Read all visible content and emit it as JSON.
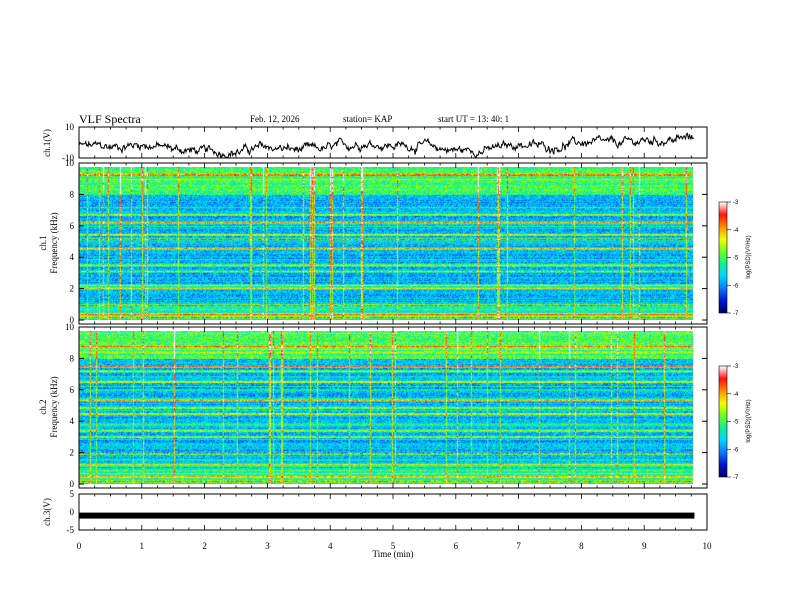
{
  "header": {
    "title": "VLF Spectra",
    "date": "Feb. 12, 2026",
    "station": "station= KAP",
    "start": "start  UT  =   13: 40: 1"
  },
  "colors": {
    "trace": "#000000",
    "colormap": [
      "#00006a",
      "#0018d0",
      "#0a7cff",
      "#00d8ff",
      "#10f090",
      "#70ff20",
      "#f0ff00",
      "#ff9000",
      "#ff1010",
      "#ffffff"
    ]
  },
  "chart_data": [
    {
      "type": "line",
      "panel": "ch1_voltage",
      "ylabel": "ch.1(V)",
      "ylim": [
        -10,
        10
      ],
      "yticks": [
        10,
        -10
      ],
      "x_minutes": [
        0,
        0.5,
        1.0,
        1.5,
        2.0,
        2.5,
        3.0,
        3.5,
        4.0,
        4.5,
        5.0,
        5.5,
        6.0,
        6.5,
        7.0,
        7.5,
        8.0,
        8.5,
        9.0,
        9.5,
        9.8
      ],
      "values": [
        -2,
        -3,
        -1,
        -4,
        -6,
        -6,
        -3,
        -5,
        -4,
        0,
        -2,
        -2,
        -5,
        -5,
        -1,
        -3,
        0,
        -1,
        1,
        2,
        3
      ]
    },
    {
      "type": "heatmap",
      "panel": "ch1_spectrogram",
      "ylabel": "ch.1\nFrequency (kHz)",
      "ylim": [
        0,
        10
      ],
      "yticks": [
        "0",
        "2",
        "4",
        "6",
        "8",
        "10"
      ],
      "colorbar": {
        "label": "log(PSD)(V²/Hz)",
        "range": [
          -7,
          -3
        ],
        "ticks": [
          "-3",
          "-4",
          "-5",
          "-6",
          "-7"
        ]
      },
      "strong_bands_khz": [
        0.2,
        0.4,
        1.0,
        2.1,
        2.3,
        3.2,
        3.6,
        4.7,
        5.3,
        5.6,
        6.4,
        6.9,
        9.5
      ]
    },
    {
      "type": "heatmap",
      "panel": "ch2_spectrogram",
      "ylabel": "ch.2\nFrequency (kHz)",
      "ylim": [
        0,
        10
      ],
      "yticks": [
        "0",
        "2",
        "4",
        "6",
        "8",
        "10"
      ],
      "colorbar": {
        "label": "log(PSD)(V²/Hz)",
        "range": [
          -7,
          -3
        ],
        "ticks": [
          "-3",
          "-4",
          "-5",
          "-6",
          "-7"
        ]
      },
      "strong_bands_khz": [
        0.2,
        0.5,
        1.3,
        2.0,
        3.1,
        3.5,
        4.6,
        5.0,
        5.5,
        6.7,
        7.4,
        7.7,
        9.0
      ]
    },
    {
      "type": "line",
      "panel": "ch3_voltage",
      "ylabel": "ch.3(V)",
      "ylim": [
        -5,
        5
      ],
      "yticks": [
        "5",
        "0",
        "-5"
      ],
      "x_minutes": [
        0,
        9.8
      ],
      "values": [
        -1,
        -1
      ]
    }
  ],
  "x_axis": {
    "label": "Time (min)",
    "range": [
      0,
      10
    ],
    "ticks": [
      "0",
      "1",
      "2",
      "3",
      "4",
      "5",
      "6",
      "7",
      "8",
      "9",
      "10"
    ]
  }
}
